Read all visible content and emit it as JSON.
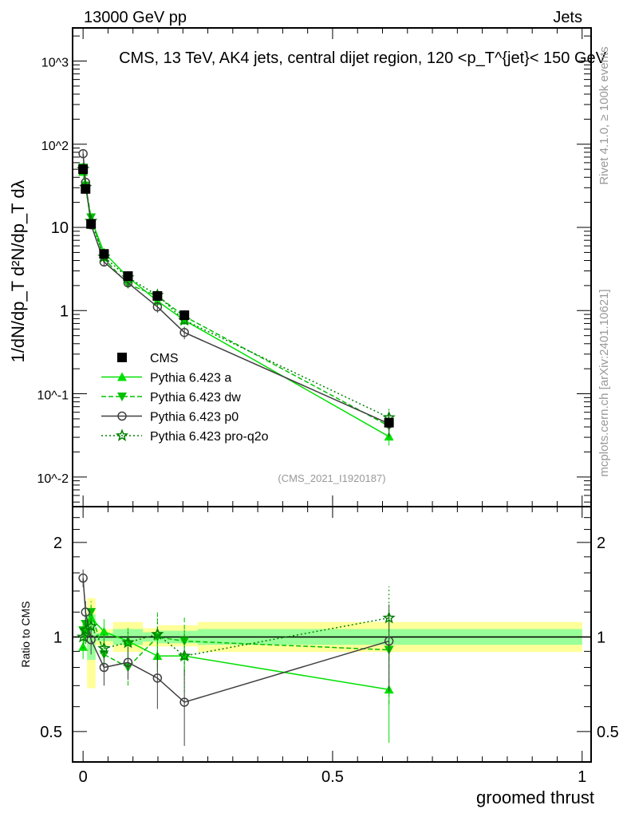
{
  "header": {
    "left": "13000 GeV pp",
    "right": "Jets"
  },
  "side_labels": {
    "rivet": "Rivet 4.1.0, ≥ 100k events",
    "mcplots": "mcplots.cern.ch [arXiv:2401.10621]"
  },
  "colors": {
    "cms": "#000000",
    "a": "#00e000",
    "dw": "#00c000",
    "p0": "#404040",
    "proq2o": "#008000",
    "band_total": "#ffff99",
    "band_stat": "#99ff99"
  },
  "chart_data": {
    "type": "line",
    "title": "CMS, 13 TeV, AK4 jets, central dijet region, 120 <p_T^{jet}< 150 GeV",
    "analysis_id": "(CMS_2021_I1920187)",
    "xlabel": "groomed thrust",
    "ylabel_main": "1/dN/dp_T  d²N/dp_T dλ",
    "ylabel_ratio": "Ratio to CMS",
    "xlim": [
      -0.021,
      1.018
    ],
    "ylim_main": [
      0.0044,
      2500
    ],
    "ylim_ratio": [
      0.4,
      2.6
    ],
    "x_ticks": [
      "0",
      "0.5",
      "1"
    ],
    "x_tick_values": [
      0,
      0.5,
      1
    ],
    "y_ticks_main": [
      "10^-2",
      "10^-1",
      "1",
      "10",
      "10^2",
      "10^3"
    ],
    "y_tick_values_main": [
      0.01,
      0.1,
      1,
      10,
      100,
      1000
    ],
    "y_ticks_ratio": [
      "0.5",
      "1",
      "2"
    ],
    "y_tick_values_ratio": [
      0.5,
      1,
      2
    ],
    "x": [
      0.0,
      0.005,
      0.016,
      0.042,
      0.09,
      0.149,
      0.203,
      0.613
    ],
    "cms": {
      "name": "CMS",
      "values": [
        50,
        29,
        11,
        4.8,
        2.6,
        1.5,
        0.88,
        0.045
      ],
      "rel_err": [
        0.06,
        0.08,
        0.05,
        0.05,
        0.05,
        0.04,
        0.05,
        0.06
      ]
    },
    "bands": [
      {
        "x": [
          0.008,
          0.025
        ],
        "total": [
          0.687,
          1.33
        ],
        "stat": [
          0.846,
          1.18
        ]
      },
      {
        "x": [
          0.025,
          0.06
        ],
        "total": [
          0.94,
          1.06
        ],
        "stat": [
          0.97,
          1.03
        ]
      },
      {
        "x": [
          0.06,
          0.12
        ],
        "total": [
          0.896,
          1.116
        ],
        "stat": [
          0.944,
          1.06
        ]
      },
      {
        "x": [
          0.12,
          0.15
        ],
        "total": [
          0.933,
          1.066
        ],
        "stat": [
          0.966,
          1.035
        ]
      },
      {
        "x": [
          0.15,
          0.23
        ],
        "total": [
          0.933,
          1.09
        ],
        "stat": [
          0.955,
          1.047
        ]
      },
      {
        "x": [
          0.23,
          1.0
        ],
        "total": [
          0.896,
          1.116
        ],
        "stat": [
          0.944,
          1.06
        ]
      }
    ],
    "series": [
      {
        "key": "a",
        "name": "Pythia 6.423 a",
        "marker": "triangle-up",
        "dash": "",
        "ratio": [
          0.93,
          1.05,
          1.15,
          1.04,
          0.97,
          0.87,
          0.87,
          0.68
        ],
        "ratio_err": [
          0.08,
          0.1,
          0.1,
          0.1,
          0.1,
          0.1,
          0.12,
          0.22
        ]
      },
      {
        "key": "dw",
        "name": "Pythia 6.423 dw",
        "marker": "triangle-down",
        "dash": "6,3",
        "ratio": [
          1.05,
          1.1,
          1.2,
          0.88,
          0.8,
          1.0,
          0.97,
          0.91
        ],
        "ratio_err": [
          0.08,
          0.1,
          0.1,
          0.1,
          0.1,
          0.2,
          0.2,
          0.3
        ]
      },
      {
        "key": "p0",
        "name": "Pythia 6.423 p0",
        "marker": "circle",
        "dash": "",
        "ratio": [
          1.54,
          1.2,
          0.98,
          0.8,
          0.83,
          0.74,
          0.62,
          0.97
        ],
        "ratio_err": [
          0.1,
          0.1,
          0.1,
          0.1,
          0.1,
          0.15,
          0.17,
          0.3
        ]
      },
      {
        "key": "proq2o",
        "name": "Pythia 6.423 pro-q2o",
        "marker": "star",
        "dash": "2,3",
        "ratio": [
          1.0,
          1.05,
          1.08,
          0.92,
          0.96,
          1.02,
          0.87,
          1.15
        ],
        "ratio_err": [
          0.08,
          0.1,
          0.1,
          0.1,
          0.1,
          0.15,
          0.2,
          0.3
        ]
      }
    ]
  }
}
